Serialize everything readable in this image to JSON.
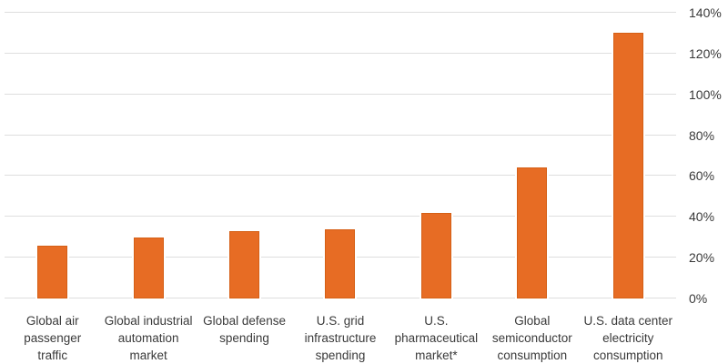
{
  "chart_data": {
    "type": "bar",
    "title": "",
    "categories": [
      "Global air passenger traffic",
      "Global industrial automation market",
      "Global defense spending",
      "U.S. grid infrastructure spending",
      "U.S. pharmaceutical market*",
      "Global semiconductor consumption",
      "U.S. data center electricity consumption"
    ],
    "category_lines": [
      [
        "Global air",
        "passenger",
        "traffic"
      ],
      [
        "Global industrial",
        "automation",
        "market"
      ],
      [
        "Global defense",
        "spending"
      ],
      [
        "U.S. grid",
        "infrastructure",
        "spending"
      ],
      [
        "U.S.",
        "pharmaceutical",
        "market*"
      ],
      [
        "Global",
        "semiconductor",
        "consumption"
      ],
      [
        "U.S. data center",
        "electricity",
        "consumption"
      ]
    ],
    "values": [
      26,
      30,
      33,
      34,
      42,
      64,
      130
    ],
    "unit": "%",
    "ylim": [
      0,
      140
    ],
    "ytick_step": 20,
    "ytick_labels": [
      "0%",
      "20%",
      "40%",
      "60%",
      "80%",
      "100%",
      "120%",
      "140%"
    ],
    "axis_side": "right",
    "grid": true,
    "legend": "none",
    "colors": {
      "bar_fill": "#e76c24",
      "bar_border": "#d55f15",
      "gridline": "#dedede",
      "text": "#3a3a3a",
      "background": "#ffffff"
    }
  }
}
